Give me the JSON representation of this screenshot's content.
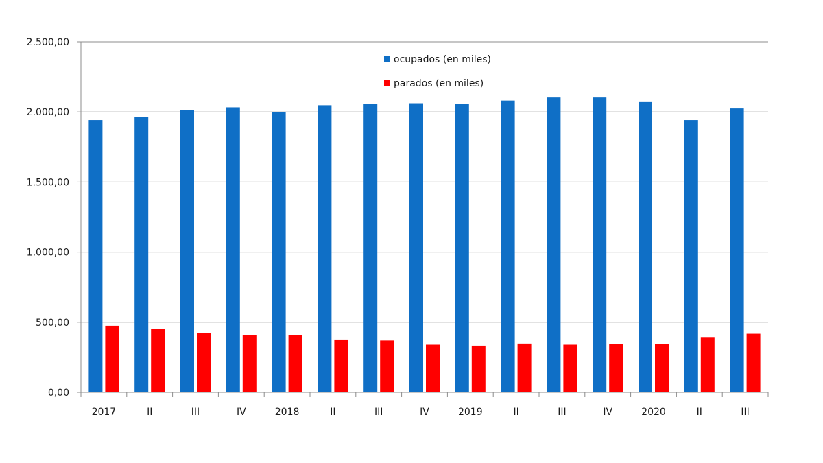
{
  "chart_data": {
    "type": "bar",
    "title": "",
    "xlabel": "",
    "ylabel": "",
    "categories": [
      "2017",
      "II",
      "III",
      "IV",
      "2018",
      "II",
      "III",
      "IV",
      "2019",
      "II",
      "III",
      "IV",
      "2020",
      "II",
      "III"
    ],
    "series": [
      {
        "name": "ocupados (en miles)",
        "color": "#0f6fc6",
        "values": [
          1942,
          1963,
          2013,
          2033,
          1998,
          2048,
          2055,
          2062,
          2055,
          2081,
          2103,
          2103,
          2075,
          1942,
          2025
        ]
      },
      {
        "name": "parados (en miles)",
        "color": "#ff0000",
        "values": [
          475,
          455,
          425,
          410,
          410,
          377,
          370,
          340,
          333,
          348,
          340,
          347,
          347,
          390,
          418
        ]
      }
    ],
    "ylim": [
      0,
      2500
    ],
    "yticks": [
      0,
      500,
      1000,
      1500,
      2000,
      2500
    ],
    "ytick_labels": [
      "0,00",
      "500,00",
      "1.000,00",
      "1.500,00",
      "2.000,00",
      "2.500,00"
    ],
    "grid": true,
    "legend_position": "top-center"
  }
}
